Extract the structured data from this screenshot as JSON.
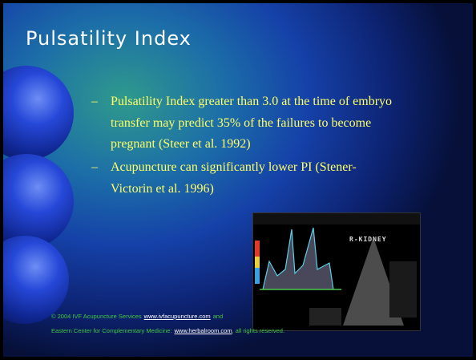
{
  "slide": {
    "title": "Pulsatility Index",
    "bullets": [
      {
        "marker": "–",
        "text": "Pulsatility Index greater than 3.0 at the time of embryo transfer may predict 35% of the failures to become pregnant (Steer et al. 1992)"
      },
      {
        "marker": "–",
        "text": "Acupuncture can significantly lower PI (Stener-Victorin et al.  1996)"
      }
    ],
    "image_label": "R-KIDNEY",
    "footer": {
      "line1": {
        "before": "© 2004 IVF Acupuncture Services",
        "link": "www.ivfacupuncture.com",
        "after": "and"
      },
      "line2": {
        "before": "Eastern Center for Complementary Medicine:",
        "link": "www.herbalroom.com",
        "after": ", all rights reserved."
      }
    }
  }
}
